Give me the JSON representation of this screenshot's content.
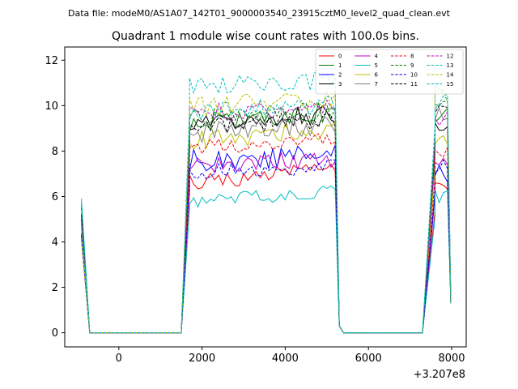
{
  "header": {
    "data_file": "Data file: modeM0/AS1A07_142T01_9000003540_23915cztM0_level2_quad_clean.evt"
  },
  "chart_data": {
    "type": "line",
    "title": "Quadrant 1 module wise count rates with 100.0s bins.",
    "xlabel": "",
    "ylabel": "",
    "x_offset_label": "+3.207e8",
    "xlim": [
      -1300,
      8350
    ],
    "ylim": [
      -0.62,
      12.58
    ],
    "xticks": [
      0,
      2000,
      4000,
      6000,
      8000
    ],
    "xtick_labels": [
      "0",
      "2000",
      "4000",
      "6000",
      "8000"
    ],
    "yticks": [
      0,
      2,
      4,
      6,
      8,
      10,
      12
    ],
    "ytick_labels": [
      "0",
      "2",
      "4",
      "6",
      "8",
      "10",
      "12"
    ],
    "grid": false,
    "legend_position": "upper-right, 4 columns",
    "series": [
      {
        "name": "0",
        "color": "#ff0000",
        "style": "solid",
        "start": 5.6,
        "level": 6.9,
        "amp": 0.35,
        "trend": 0.6,
        "end": 6.3,
        "seed": 11
      },
      {
        "name": "1",
        "color": "#008000",
        "style": "solid",
        "start": 5.7,
        "level": 9.5,
        "amp": 0.45,
        "trend": 0.5,
        "end": 9.6,
        "seed": 12
      },
      {
        "name": "2",
        "color": "#0000ff",
        "style": "solid",
        "start": 4.4,
        "level": 7.7,
        "amp": 0.55,
        "trend": 0.3,
        "end": 7.1,
        "seed": 13
      },
      {
        "name": "3",
        "color": "#000000",
        "style": "solid",
        "start": 5.2,
        "level": 9.4,
        "amp": 0.45,
        "trend": 0.4,
        "end": 9.2,
        "seed": 14
      },
      {
        "name": "4",
        "color": "#bf00bf",
        "style": "solid",
        "start": 4.2,
        "level": 7.5,
        "amp": 0.4,
        "trend": 0.3,
        "end": 7.3,
        "seed": 15
      },
      {
        "name": "5",
        "color": "#00bfbf",
        "style": "solid",
        "start": 5.8,
        "level": 6.0,
        "amp": 0.3,
        "trend": 0.5,
        "end": 6.0,
        "seed": 16
      },
      {
        "name": "6",
        "color": "#bfbf00",
        "style": "solid",
        "start": 4.1,
        "level": 8.7,
        "amp": 0.45,
        "trend": 0.5,
        "end": 8.6,
        "seed": 17
      },
      {
        "name": "7",
        "color": "#808080",
        "style": "solid",
        "start": 4.9,
        "level": 9.0,
        "amp": 0.5,
        "trend": 0.4,
        "end": 9.5,
        "seed": 18
      },
      {
        "name": "8",
        "color": "#ff0000",
        "style": "dashed",
        "start": 4.3,
        "level": 8.3,
        "amp": 0.4,
        "trend": 0.4,
        "end": 8.0,
        "seed": 19
      },
      {
        "name": "9",
        "color": "#008000",
        "style": "dashed",
        "start": 5.5,
        "level": 9.6,
        "amp": 0.4,
        "trend": 0.4,
        "end": 9.8,
        "seed": 20
      },
      {
        "name": "10",
        "color": "#0000ff",
        "style": "dashed",
        "start": 4.3,
        "level": 7.2,
        "amp": 0.35,
        "trend": 0.3,
        "end": 7.4,
        "seed": 21
      },
      {
        "name": "11",
        "color": "#000000",
        "style": "dashed",
        "start": 5.0,
        "level": 9.2,
        "amp": 0.4,
        "trend": 0.4,
        "end": 9.9,
        "seed": 22
      },
      {
        "name": "12",
        "color": "#bf00bf",
        "style": "dashed",
        "start": 5.1,
        "level": 9.8,
        "amp": 0.4,
        "trend": 0.3,
        "end": 9.5,
        "seed": 23
      },
      {
        "name": "13",
        "color": "#00bfbf",
        "style": "dashed",
        "start": 5.9,
        "level": 11.0,
        "amp": 0.4,
        "trend": 0.2,
        "end": 10.8,
        "seed": 24
      },
      {
        "name": "14",
        "color": "#bfbf00",
        "style": "dashed",
        "start": 4.6,
        "level": 10.1,
        "amp": 0.45,
        "trend": 0.4,
        "end": 10.3,
        "seed": 25
      },
      {
        "name": "15",
        "color": "#00bfbf",
        "style": "dashed",
        "start": 4.7,
        "level": 9.9,
        "amp": 0.4,
        "trend": 0.3,
        "end": 10.2,
        "seed": 26
      }
    ],
    "time_segments": {
      "x_start": -900,
      "x_first_gap_start": -700,
      "gap1": [
        -700,
        1500
      ],
      "rise1": [
        1500,
        1700
      ],
      "active1": [
        1700,
        5200
      ],
      "drop1": [
        5200,
        5400
      ],
      "gap2": [
        5400,
        7300
      ],
      "rise2": [
        7300,
        7600
      ],
      "active2": [
        7600,
        7900
      ],
      "x_end": 7980,
      "x_step": 100
    }
  }
}
